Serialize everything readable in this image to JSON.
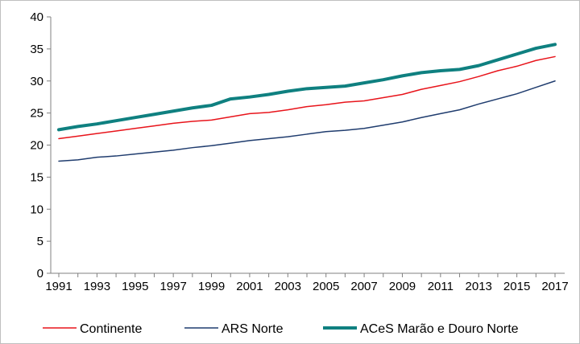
{
  "chart_data": {
    "type": "line",
    "title": "",
    "xlabel": "",
    "ylabel": "",
    "ylim": [
      0,
      40
    ],
    "yticks": [
      0,
      5,
      10,
      15,
      20,
      25,
      30,
      35,
      40
    ],
    "x": [
      1991,
      1992,
      1993,
      1994,
      1995,
      1996,
      1997,
      1998,
      1999,
      2000,
      2001,
      2002,
      2003,
      2004,
      2005,
      2006,
      2007,
      2008,
      2009,
      2010,
      2011,
      2012,
      2013,
      2014,
      2015,
      2016,
      2017
    ],
    "xtick_labels": [
      "1991",
      "1993",
      "1995",
      "1997",
      "1999",
      "2001",
      "2003",
      "2005",
      "2007",
      "2009",
      "2011",
      "2013",
      "2015",
      "2017"
    ],
    "grid": false,
    "legend_position": "bottom",
    "series": [
      {
        "name": "Continente",
        "color": "#e8141b",
        "width": 1.5,
        "values": [
          21.0,
          21.4,
          21.8,
          22.2,
          22.6,
          23.0,
          23.4,
          23.7,
          23.9,
          24.4,
          24.9,
          25.1,
          25.5,
          26.0,
          26.3,
          26.7,
          26.9,
          27.4,
          27.9,
          28.7,
          29.3,
          29.9,
          30.7,
          31.6,
          32.3,
          33.2,
          33.8
        ]
      },
      {
        "name": "ARS Norte",
        "color": "#1f3c6e",
        "width": 1.5,
        "values": [
          17.5,
          17.7,
          18.1,
          18.3,
          18.6,
          18.9,
          19.2,
          19.6,
          19.9,
          20.3,
          20.7,
          21.0,
          21.3,
          21.7,
          22.1,
          22.3,
          22.6,
          23.1,
          23.6,
          24.3,
          24.9,
          25.5,
          26.4,
          27.2,
          28.0,
          29.0,
          30.0
        ]
      },
      {
        "name": "ACeS Marão e Douro Norte",
        "color": "#0f8080",
        "width": 4,
        "values": [
          22.4,
          22.9,
          23.3,
          23.8,
          24.3,
          24.8,
          25.3,
          25.8,
          26.2,
          27.2,
          27.5,
          27.9,
          28.4,
          28.8,
          29.0,
          29.2,
          29.7,
          30.2,
          30.8,
          31.3,
          31.6,
          31.8,
          32.4,
          33.3,
          34.2,
          35.1,
          35.7
        ]
      }
    ]
  }
}
